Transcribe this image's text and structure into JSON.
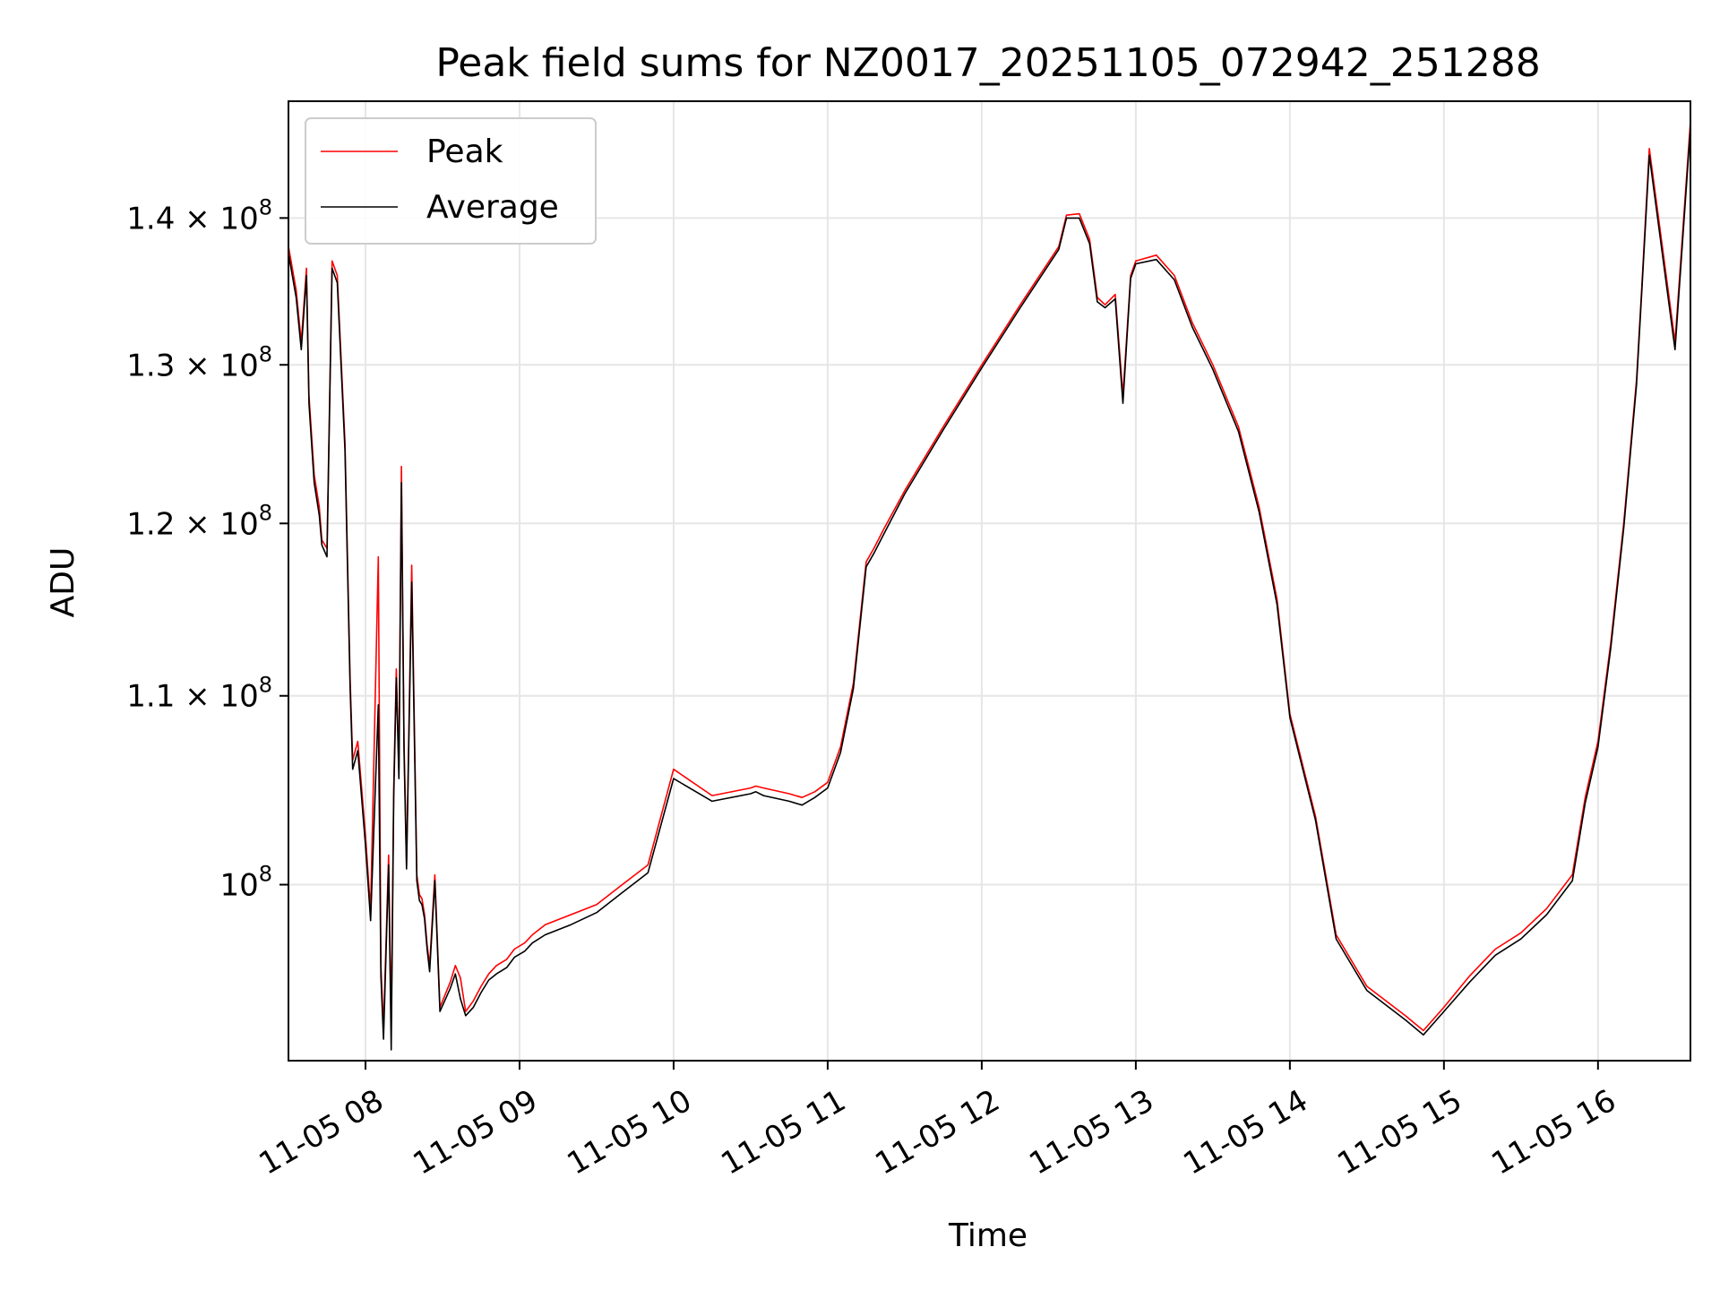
{
  "chart_data": {
    "type": "line",
    "title": "Peak field sums for NZ0017_20251105_072942_251288",
    "xlabel": "Time",
    "ylabel": "ADU",
    "yscale": "log",
    "xlim": [
      "2025-11-05 07:30",
      "2025-11-05 16:36"
    ],
    "ylim": [
      91500000,
      148500000
    ],
    "grid": true,
    "legend": "upper-left",
    "x_ticks": [
      "11-05 08",
      "11-05 09",
      "11-05 10",
      "11-05 11",
      "11-05 12",
      "11-05 13",
      "11-05 14",
      "11-05 15",
      "11-05 16"
    ],
    "y_ticks": [
      {
        "value": 100000000,
        "base": "10",
        "exp": "8"
      },
      {
        "value": 110000000,
        "base": "1.1 × 10",
        "exp": "8"
      },
      {
        "value": 120000000,
        "base": "1.2 × 10",
        "exp": "8"
      },
      {
        "value": 130000000,
        "base": "1.3 × 10",
        "exp": "8"
      },
      {
        "value": 140000000,
        "base": "1.4 × 10",
        "exp": "8"
      }
    ],
    "series": [
      {
        "name": "Peak",
        "color": "#ff0000",
        "x": [
          "07:30",
          "07:33",
          "07:35",
          "07:37",
          "07:38",
          "07:40",
          "07:42",
          "07:43",
          "07:45",
          "07:47",
          "07:49",
          "07:52",
          "07:54",
          "07:55",
          "07:57",
          "08:00",
          "08:02",
          "08:05",
          "08:06",
          "08:07",
          "08:09",
          "08:10",
          "08:11",
          "08:12",
          "08:13",
          "08:14",
          "08:15",
          "08:16",
          "08:18",
          "08:20",
          "08:21",
          "08:22",
          "08:23",
          "08:24",
          "08:25",
          "08:27",
          "08:29",
          "08:33",
          "08:35",
          "08:37",
          "08:39",
          "08:42",
          "08:45",
          "08:48",
          "08:51",
          "08:55",
          "08:58",
          "09:02",
          "09:05",
          "09:10",
          "09:20",
          "09:30",
          "09:40",
          "09:50",
          "10:00",
          "10:15",
          "10:30",
          "10:32",
          "10:35",
          "10:45",
          "10:50",
          "10:55",
          "11:00",
          "11:05",
          "11:10",
          "11:15",
          "11:18",
          "11:22",
          "11:30",
          "11:45",
          "12:00",
          "12:15",
          "12:30",
          "12:33",
          "12:38",
          "12:42",
          "12:45",
          "12:48",
          "12:52",
          "12:55",
          "12:58",
          "13:00",
          "13:08",
          "13:15",
          "13:22",
          "13:30",
          "13:40",
          "13:48",
          "13:55",
          "14:00",
          "14:10",
          "14:18",
          "14:30",
          "14:45",
          "14:52",
          "15:00",
          "15:10",
          "15:20",
          "15:30",
          "15:40",
          "15:50",
          "15:55",
          "16:00",
          "16:05",
          "16:10",
          "16:15",
          "16:17",
          "16:20",
          "16:30",
          "16:36"
        ],
        "y": [
          138000000,
          135000000,
          131500000,
          136500000,
          128000000,
          123000000,
          121000000,
          119000000,
          118500000,
          137000000,
          136000000,
          125000000,
          111000000,
          106500000,
          107500000,
          102500000,
          98700000,
          118000000,
          96000000,
          93000000,
          101500000,
          93000000,
          105000000,
          111500000,
          106000000,
          123500000,
          107500000,
          101000000,
          117500000,
          100500000,
          99500000,
          99300000,
          98500000,
          97000000,
          96000000,
          100500000,
          94000000,
          95200000,
          96000000,
          95400000,
          93800000,
          94300000,
          95000000,
          95600000,
          96000000,
          96300000,
          96800000,
          97100000,
          97500000,
          98000000,
          98500000,
          99000000,
          100000000,
          101000000,
          106000000,
          104600000,
          105000000,
          105100000,
          105000000,
          104700000,
          104500000,
          104800000,
          105300000,
          107200000,
          110700000,
          117700000,
          118500000,
          119700000,
          122000000,
          126000000,
          130000000,
          134000000,
          138000000,
          140200000,
          140300000,
          138500000,
          134500000,
          134000000,
          134700000,
          128000000,
          136000000,
          137000000,
          137400000,
          136000000,
          132800000,
          130000000,
          126000000,
          121000000,
          115500000,
          109000000,
          103500000,
          97500000,
          95000000,
          93600000,
          92900000,
          94000000,
          95500000,
          96800000,
          97600000,
          98800000,
          100500000,
          104500000,
          107500000,
          113000000,
          120000000,
          129000000,
          135000000,
          145000000,
          131500000,
          147000000
        ]
      },
      {
        "name": "Average",
        "color": "#000000",
        "x": [
          "07:30",
          "07:33",
          "07:35",
          "07:37",
          "07:38",
          "07:40",
          "07:42",
          "07:43",
          "07:45",
          "07:47",
          "07:49",
          "07:52",
          "07:54",
          "07:55",
          "07:57",
          "08:00",
          "08:02",
          "08:05",
          "08:06",
          "08:07",
          "08:09",
          "08:10",
          "08:11",
          "08:12",
          "08:13",
          "08:14",
          "08:15",
          "08:16",
          "08:18",
          "08:20",
          "08:21",
          "08:22",
          "08:23",
          "08:24",
          "08:25",
          "08:27",
          "08:29",
          "08:33",
          "08:35",
          "08:37",
          "08:39",
          "08:42",
          "08:45",
          "08:48",
          "08:51",
          "08:55",
          "08:58",
          "09:02",
          "09:05",
          "09:10",
          "09:20",
          "09:30",
          "09:40",
          "09:50",
          "10:00",
          "10:15",
          "10:30",
          "10:32",
          "10:35",
          "10:45",
          "10:50",
          "10:55",
          "11:00",
          "11:05",
          "11:10",
          "11:15",
          "11:18",
          "11:22",
          "11:30",
          "11:45",
          "12:00",
          "12:15",
          "12:30",
          "12:33",
          "12:38",
          "12:42",
          "12:45",
          "12:48",
          "12:52",
          "12:55",
          "12:58",
          "13:00",
          "13:08",
          "13:15",
          "13:22",
          "13:30",
          "13:40",
          "13:48",
          "13:55",
          "14:00",
          "14:10",
          "14:18",
          "14:30",
          "14:45",
          "14:52",
          "15:00",
          "15:10",
          "15:20",
          "15:30",
          "15:40",
          "15:50",
          "15:55",
          "16:00",
          "16:05",
          "16:10",
          "16:15",
          "16:17",
          "16:20",
          "16:30",
          "16:36"
        ],
        "y": [
          137500000,
          134500000,
          131000000,
          136000000,
          127500000,
          122500000,
          120500000,
          118700000,
          118000000,
          136500000,
          135500000,
          124500000,
          110500000,
          106000000,
          107000000,
          102000000,
          98200000,
          109500000,
          95500000,
          92500000,
          101000000,
          92000000,
          104500000,
          111000000,
          105500000,
          122500000,
          107000000,
          100800000,
          116500000,
          100200000,
          99200000,
          99000000,
          98300000,
          96800000,
          95700000,
          100200000,
          93800000,
          94900000,
          95600000,
          94400000,
          93600000,
          94000000,
          94700000,
          95300000,
          95600000,
          95900000,
          96400000,
          96700000,
          97100000,
          97500000,
          98000000,
          98600000,
          99600000,
          100600000,
          105500000,
          104300000,
          104700000,
          104800000,
          104600000,
          104300000,
          104100000,
          104500000,
          105000000,
          106900000,
          110400000,
          117400000,
          118200000,
          119400000,
          121800000,
          125800000,
          129800000,
          133800000,
          137800000,
          140000000,
          140000000,
          138200000,
          134200000,
          133800000,
          134400000,
          127500000,
          135800000,
          136800000,
          137100000,
          135700000,
          132500000,
          129700000,
          125700000,
          120700000,
          115200000,
          108800000,
          103300000,
          97300000,
          94800000,
          93400000,
          92700000,
          93800000,
          95200000,
          96500000,
          97300000,
          98500000,
          100200000,
          104200000,
          107200000,
          112700000,
          119700000,
          128700000,
          134700000,
          144500000,
          131000000,
          146500000
        ]
      }
    ]
  }
}
